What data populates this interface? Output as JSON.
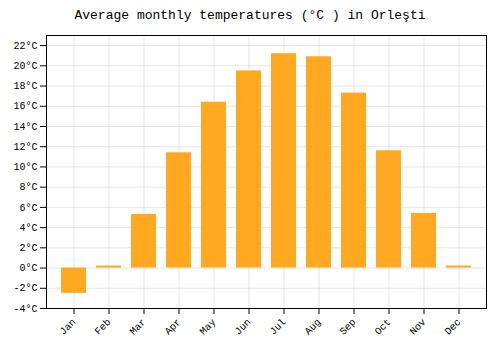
{
  "chart_data": {
    "type": "bar",
    "title": "Average monthly temperatures (°C ) in Orleşti",
    "categories": [
      "Jan",
      "Feb",
      "Mar",
      "Apr",
      "May",
      "Jun",
      "Jul",
      "Aug",
      "Sep",
      "Oct",
      "Nov",
      "Dec"
    ],
    "values": [
      -2.5,
      0.2,
      5.3,
      11.4,
      16.4,
      19.5,
      21.2,
      20.9,
      17.3,
      11.6,
      5.4,
      0.2
    ],
    "color": "#FFA820",
    "ylim": [
      -4,
      23
    ],
    "yticks": [
      {
        "value": -4,
        "label": "-4°C"
      },
      {
        "value": -2,
        "label": "-2°C"
      },
      {
        "value": 0,
        "label": "0°C"
      },
      {
        "value": 2,
        "label": "2°C"
      },
      {
        "value": 4,
        "label": "4°C"
      },
      {
        "value": 6,
        "label": "6°C"
      },
      {
        "value": 8,
        "label": "8°C"
      },
      {
        "value": 10,
        "label": "10°C"
      },
      {
        "value": 12,
        "label": "12°C"
      },
      {
        "value": 14,
        "label": "14°C"
      },
      {
        "value": 16,
        "label": "16°C"
      },
      {
        "value": 18,
        "label": "18°C"
      },
      {
        "value": 20,
        "label": "20°C"
      },
      {
        "value": 22,
        "label": "22°C"
      }
    ],
    "grid": true
  }
}
